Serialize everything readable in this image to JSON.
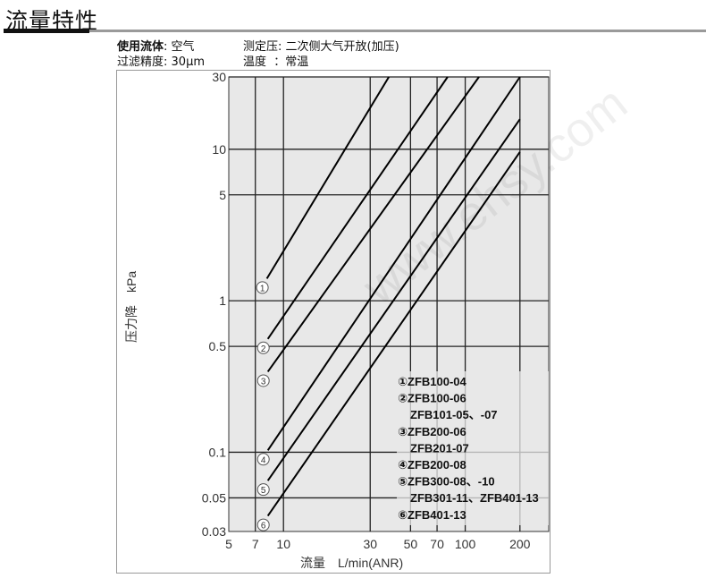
{
  "header": {
    "title": "流量特性"
  },
  "conditions": {
    "fluid_label": "使用流体",
    "fluid_value": ": 空气",
    "filter_label": "过滤精度",
    "filter_value": ": 30μm",
    "pressure_label": "测定压",
    "pressure_value": ": 二次侧大气开放(加压)",
    "temp_label": "温度",
    "temp_value": "：常温"
  },
  "watermark": "www.ehsy.com",
  "chart_data": {
    "type": "line",
    "title": "",
    "xlabel": "流量　L/min(ANR)",
    "ylabel": "压力降　kPa",
    "x_scale": "log",
    "y_scale": "log",
    "xlim": [
      5,
      288
    ],
    "ylim": [
      0.03,
      30
    ],
    "grid": true,
    "background": "#e8e8e8",
    "x_ticks": [
      5,
      7,
      10,
      30,
      50,
      70,
      100,
      200
    ],
    "y_ticks": [
      0.03,
      0.05,
      0.1,
      0.5,
      1,
      5,
      10,
      30
    ],
    "series": [
      {
        "name": "①",
        "x": [
          8.1,
          38
        ],
        "y": [
          1.4,
          30
        ]
      },
      {
        "name": "②",
        "x": [
          8.2,
          80
        ],
        "y": [
          0.56,
          30
        ]
      },
      {
        "name": "③",
        "x": [
          8.2,
          119
        ],
        "y": [
          0.34,
          30
        ]
      },
      {
        "name": "④",
        "x": [
          8.2,
          200
        ],
        "y": [
          0.103,
          30
        ]
      },
      {
        "name": "⑤",
        "x": [
          8.2,
          200
        ],
        "y": [
          0.065,
          15.8
        ]
      },
      {
        "name": "⑥",
        "x": [
          8.2,
          200
        ],
        "y": [
          0.038,
          9.6
        ]
      }
    ],
    "legend": [
      "①ZFB100-04",
      "②ZFB100-06",
      " ZFB101-05、-07",
      "③ZFB200-06",
      " ZFB201-07",
      "④ZFB200-08",
      "⑤ZFB300-08、-10",
      " ZFB301-11、ZFB401-13",
      "⑥ZFB401-13"
    ],
    "legend_placement": "bottom-right"
  }
}
